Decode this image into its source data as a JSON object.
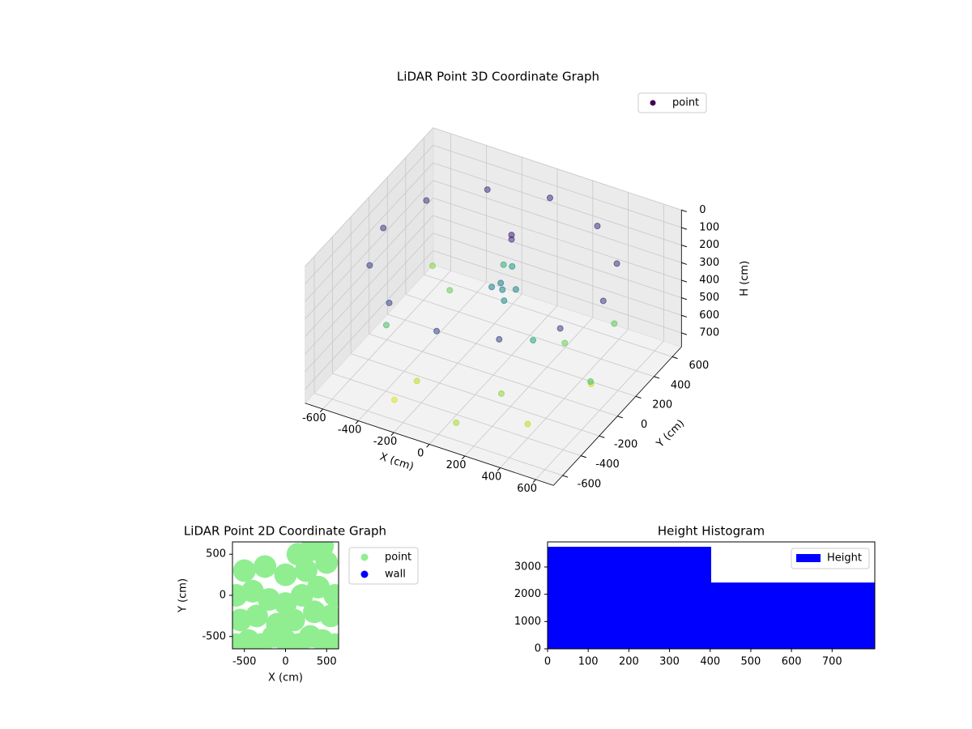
{
  "chart_data": [
    {
      "type": "scatter3d",
      "title": "LiDAR Point 3D Coordinate Graph",
      "x_label": "X (cm)",
      "y_label": "Y (cm)",
      "z_label": "H (cm)",
      "xlim": [
        -700,
        700
      ],
      "ylim": [
        -700,
        700
      ],
      "zlim": [
        0,
        780
      ],
      "z_inverted": true,
      "xticks": [
        -600,
        -400,
        -200,
        0,
        200,
        400,
        600
      ],
      "yticks": [
        -600,
        -400,
        -200,
        0,
        200,
        400,
        600
      ],
      "zticks": [
        0,
        100,
        200,
        300,
        400,
        500,
        600,
        700
      ],
      "legend": "upper right",
      "grid": true,
      "series": [
        {
          "name": "point",
          "colormap": "viridis",
          "x": [
            620,
            537,
            310,
            0,
            -310,
            -537,
            -620,
            -537,
            -310,
            0,
            310,
            537,
            0,
            50,
            -50,
            30,
            -20,
            0,
            10,
            400,
            -400,
            200,
            -200,
            500,
            -500,
            100,
            -100,
            300,
            -300,
            600,
            -600,
            250,
            -250,
            450
          ],
          "y": [
            0,
            310,
            537,
            620,
            537,
            310,
            0,
            -310,
            -537,
            -620,
            -537,
            -310,
            100,
            150,
            80,
            60,
            120,
            200,
            180,
            -400,
            300,
            -300,
            500,
            100,
            -200,
            -600,
            400,
            200,
            -500,
            -100,
            500,
            -50,
            -350,
            450
          ],
          "z": [
            150,
            140,
            130,
            120,
            130,
            140,
            150,
            160,
            170,
            180,
            170,
            160,
            350,
            360,
            340,
            380,
            330,
            120,
            80,
            700,
            600,
            650,
            500,
            720,
            550,
            680,
            420,
            610,
            740,
            560,
            640,
            470,
            700,
            590
          ]
        }
      ]
    },
    {
      "type": "scatter",
      "title": "LiDAR Point 2D Coordinate Graph",
      "x_label": "X (cm)",
      "y_label": "Y (cm)",
      "xlim": [
        -645,
        645
      ],
      "ylim": [
        -650,
        650
      ],
      "xticks": [
        -500,
        0,
        500
      ],
      "yticks": [
        -500,
        0,
        500
      ],
      "legend": "outside right",
      "series": [
        {
          "name": "point",
          "color": "#90ee90",
          "x": [
            -600,
            -450,
            -300,
            -150,
            0,
            150,
            300,
            450,
            600,
            -550,
            -350,
            -100,
            100,
            350,
            550,
            -600,
            -400,
            -200,
            0,
            200,
            400,
            600,
            -500,
            -250,
            0,
            250,
            500,
            300,
            450,
            150
          ],
          "y": [
            -600,
            -550,
            -600,
            -500,
            -550,
            -600,
            -500,
            -550,
            -600,
            -300,
            -250,
            -350,
            -300,
            -200,
            -250,
            0,
            50,
            -50,
            -100,
            0,
            100,
            0,
            300,
            350,
            250,
            300,
            400,
            550,
            600,
            500
          ]
        },
        {
          "name": "wall",
          "color": "#0000ff",
          "x": [],
          "y": []
        }
      ]
    },
    {
      "type": "histogram",
      "title": "Height Histogram",
      "bins": [
        0,
        402.5,
        805
      ],
      "values": [
        3740,
        2430
      ],
      "name": "Height",
      "color": "#0000ff",
      "xlim": [
        0,
        805
      ],
      "ylim": [
        0,
        3920
      ],
      "xticks": [
        0,
        100,
        200,
        300,
        400,
        500,
        600,
        700
      ],
      "yticks": [
        0,
        1000,
        2000,
        3000
      ],
      "legend": "upper right"
    }
  ]
}
